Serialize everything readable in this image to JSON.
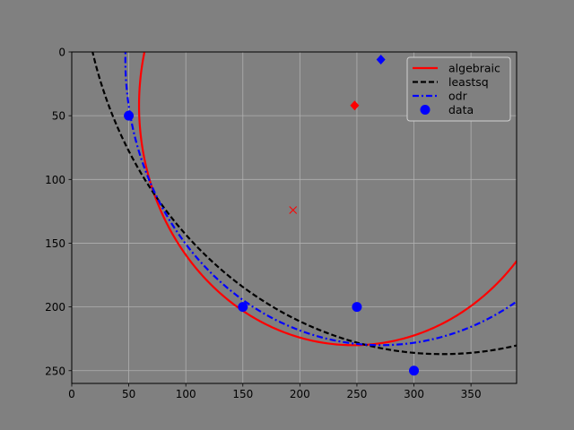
{
  "chart_data": {
    "type": "line",
    "title": "",
    "xlabel": "",
    "ylabel": "",
    "xlim": [
      0,
      390
    ],
    "ylim": [
      260,
      0
    ],
    "y_axis_inverted": true,
    "grid": true,
    "background_color": "#808080",
    "xticks": [
      0,
      50,
      100,
      150,
      200,
      250,
      300,
      350
    ],
    "yticks": [
      0,
      50,
      100,
      150,
      200,
      250
    ],
    "legend": {
      "placement": "top-right",
      "entries": [
        {
          "label": "algebraic",
          "color": "#ff0000",
          "style": "solid"
        },
        {
          "label": "leastsq",
          "color": "#000000",
          "style": "dashed"
        },
        {
          "label": "odr",
          "color": "#0000ff",
          "style": "dashdot"
        },
        {
          "label": "data",
          "color": "#0000ff",
          "style": "marker-circle"
        }
      ]
    },
    "series": [
      {
        "name": "algebraic",
        "kind": "circle",
        "center": [
          247,
          42
        ],
        "radius": 188,
        "color": "#ff0000",
        "style": "solid"
      },
      {
        "name": "leastsq",
        "kind": "circle",
        "center": [
          325,
          -80
        ],
        "radius": 317,
        "color": "#000000",
        "style": "dashed"
      },
      {
        "name": "odr",
        "kind": "circle",
        "center": [
          271,
          6
        ],
        "radius": 224,
        "color": "#0000ff",
        "style": "dashdot"
      },
      {
        "name": "data",
        "kind": "points",
        "color": "#0000ff",
        "marker": "circle",
        "points": [
          [
            50,
            50
          ],
          [
            150,
            200
          ],
          [
            250,
            200
          ],
          [
            300,
            250
          ]
        ]
      }
    ],
    "annotations": [
      {
        "kind": "diamond",
        "x": 248,
        "y": 42,
        "color": "#ff0000"
      },
      {
        "kind": "diamond",
        "x": 271,
        "y": 6,
        "color": "#0000ff"
      },
      {
        "kind": "x-marker",
        "x": 194,
        "y": 124,
        "color": "#ff0000"
      }
    ]
  }
}
